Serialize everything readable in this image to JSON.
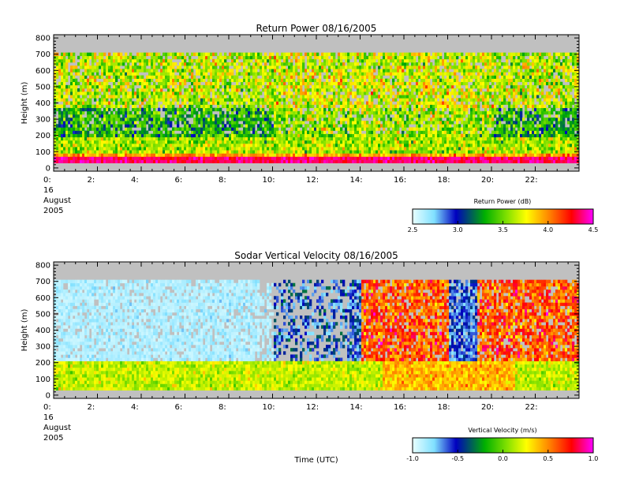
{
  "chart_data": [
    {
      "type": "heatmap",
      "title": "Return Power 08/16/2005",
      "ylabel": "Height (m)",
      "xlabel": "",
      "x_ticks": [
        "0:",
        "2:",
        "4:",
        "6:",
        "8:",
        "10:",
        "12:",
        "14:",
        "16:",
        "18:",
        "20:",
        "22:"
      ],
      "x_tick_values": [
        0,
        2,
        4,
        6,
        8,
        10,
        12,
        14,
        16,
        18,
        20,
        22
      ],
      "xlim": [
        0,
        24
      ],
      "y_ticks": [
        "0",
        "100",
        "200",
        "300",
        "400",
        "500",
        "600",
        "700",
        "800"
      ],
      "y_tick_values": [
        0,
        100,
        200,
        300,
        400,
        500,
        600,
        700,
        800
      ],
      "ylim": [
        -20,
        820
      ],
      "date_label": [
        "16",
        "August",
        "2005"
      ],
      "data_height_range": [
        30,
        710
      ],
      "no_data_color": "#c0c0c0",
      "colorbar": {
        "title": "Return Power (dB)",
        "ticks": [
          "2.5",
          "3.0",
          "3.5",
          "4.0",
          "4.5"
        ],
        "tick_values": [
          2.5,
          3.0,
          3.5,
          4.0,
          4.5
        ],
        "range": [
          2.5,
          4.5
        ]
      },
      "field_description": {
        "low_level_maximum_m": [
          30,
          60
        ],
        "low_level_value": 4.4,
        "upper_level_day_value": 3.6,
        "upper_level_night_value": 3.4
      }
    },
    {
      "type": "heatmap",
      "title": "Sodar Vertical Velocity 08/16/2005",
      "ylabel": "Height (m)",
      "xlabel": "Time (UTC)",
      "x_ticks": [
        "0:",
        "2:",
        "4:",
        "6:",
        "8:",
        "10:",
        "12:",
        "14:",
        "16:",
        "18:",
        "20:",
        "22:"
      ],
      "x_tick_values": [
        0,
        2,
        4,
        6,
        8,
        10,
        12,
        14,
        16,
        18,
        20,
        22
      ],
      "xlim": [
        0,
        24
      ],
      "y_ticks": [
        "0",
        "100",
        "200",
        "300",
        "400",
        "500",
        "600",
        "700",
        "800"
      ],
      "y_tick_values": [
        0,
        100,
        200,
        300,
        400,
        500,
        600,
        700,
        800
      ],
      "ylim": [
        -20,
        820
      ],
      "date_label": [
        "16",
        "August",
        "2005"
      ],
      "data_height_range": [
        30,
        710
      ],
      "no_data_color": "#c0c0c0",
      "colorbar": {
        "title": "Vertical Velocity (m/s)",
        "ticks": [
          "-1.0",
          "-0.5",
          "0.0",
          "0.5",
          "1.0"
        ],
        "tick_values": [
          -1.0,
          -0.5,
          0.0,
          0.5,
          1.0
        ],
        "range": [
          -1.0,
          1.0
        ]
      },
      "field_description": {
        "night_upper_value": -0.9,
        "day_upper_value": 0.95,
        "low_level_value": 0.05
      }
    }
  ],
  "colors": {
    "background": "#ffffff",
    "no_data": "#c0c0c0",
    "colormap": [
      "#e8ffff",
      "#80e0ff",
      "#0000c0",
      "#00b000",
      "#80e000",
      "#ffff00",
      "#ff8000",
      "#ff0000",
      "#ff00ff"
    ]
  }
}
